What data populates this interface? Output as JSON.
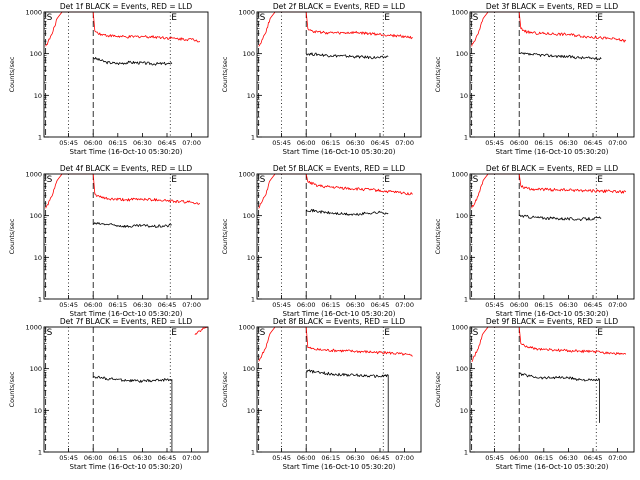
{
  "chart_data": [
    {
      "type": "line",
      "title": "Det 1f BLACK = Events, RED = LLD",
      "xlabel": "Start Time (16-Oct-10 05:30:20)",
      "ylabel": "Counts/sec",
      "yscale": "log",
      "ylim": [
        1,
        1000
      ],
      "xlim": [
        "05:30",
        "07:10"
      ],
      "y_ticks": [
        "1",
        "10",
        "100",
        "1000"
      ],
      "x_ticks": [
        "05:45",
        "06:00",
        "06:15",
        "06:30",
        "06:45",
        "07:00"
      ],
      "vlines": [
        {
          "time": "05:31",
          "style": "dashed"
        },
        {
          "time": "05:45",
          "style": "dotted"
        },
        {
          "time": "06:00",
          "style": "dashed"
        },
        {
          "time": "06:47",
          "style": "dotted"
        }
      ],
      "markers": [
        {
          "label": "S",
          "time": "05:31"
        },
        {
          "label": "E",
          "time": "06:47"
        }
      ],
      "series": [
        {
          "color": "#000000",
          "x": [
            "06:00",
            "06:08",
            "06:15",
            "06:22",
            "06:30",
            "06:37",
            "06:45",
            "06:48"
          ],
          "y": [
            80,
            62,
            58,
            62,
            60,
            57,
            58,
            57
          ]
        },
        {
          "color": "#ff0000",
          "x": [
            "05:31",
            "05:35",
            "05:38",
            "05:41",
            "05:43",
            "06:00",
            "06:01",
            "06:05",
            "06:10",
            "06:20",
            "06:30",
            "06:40",
            "06:50",
            "07:00",
            "07:05"
          ],
          "y": [
            150,
            300,
            700,
            1000,
            1000,
            1000,
            350,
            290,
            270,
            250,
            260,
            250,
            230,
            220,
            200
          ]
        }
      ]
    },
    {
      "type": "line",
      "title": "Det 2f BLACK = Events, RED = LLD",
      "xlabel": "Start Time (16-Oct-10 05:30:20)",
      "ylabel": "Counts/sec",
      "yscale": "log",
      "ylim": [
        1,
        1000
      ],
      "xlim": [
        "05:30",
        "07:10"
      ],
      "y_ticks": [
        "1",
        "10",
        "100",
        "1000"
      ],
      "x_ticks": [
        "05:45",
        "06:00",
        "06:15",
        "06:30",
        "06:45",
        "07:00"
      ],
      "vlines": [
        {
          "time": "05:31",
          "style": "dashed"
        },
        {
          "time": "05:45",
          "style": "dotted"
        },
        {
          "time": "06:00",
          "style": "dashed"
        },
        {
          "time": "06:47",
          "style": "dotted"
        }
      ],
      "markers": [
        {
          "label": "S",
          "time": "05:31"
        },
        {
          "label": "E",
          "time": "06:47"
        }
      ],
      "series": [
        {
          "color": "#000000",
          "x": [
            "06:00",
            "06:08",
            "06:15",
            "06:22",
            "06:30",
            "06:37",
            "06:45",
            "06:50"
          ],
          "y": [
            100,
            95,
            90,
            88,
            85,
            82,
            80,
            85
          ]
        },
        {
          "color": "#ff0000",
          "x": [
            "05:31",
            "05:35",
            "05:38",
            "05:41",
            "05:43",
            "06:00",
            "06:01",
            "06:05",
            "06:10",
            "06:20",
            "06:30",
            "06:40",
            "06:50",
            "07:00",
            "07:05"
          ],
          "y": [
            150,
            300,
            700,
            1000,
            1000,
            1000,
            400,
            340,
            320,
            310,
            320,
            300,
            280,
            260,
            240
          ]
        }
      ]
    },
    {
      "type": "line",
      "title": "Det 3f BLACK = Events, RED = LLD",
      "xlabel": "Start Time (16-Oct-10 05:30:20)",
      "ylabel": "Counts/sec",
      "yscale": "log",
      "ylim": [
        1,
        1000
      ],
      "xlim": [
        "05:30",
        "07:10"
      ],
      "y_ticks": [
        "1",
        "10",
        "100",
        "1000"
      ],
      "x_ticks": [
        "05:45",
        "06:00",
        "06:15",
        "06:30",
        "06:45",
        "07:00"
      ],
      "vlines": [
        {
          "time": "05:31",
          "style": "dashed"
        },
        {
          "time": "05:45",
          "style": "dotted"
        },
        {
          "time": "06:00",
          "style": "dashed"
        },
        {
          "time": "06:47",
          "style": "dotted"
        }
      ],
      "markers": [
        {
          "label": "S",
          "time": "05:31"
        },
        {
          "label": "E",
          "time": "06:47"
        }
      ],
      "series": [
        {
          "color": "#000000",
          "x": [
            "06:00",
            "06:08",
            "06:15",
            "06:22",
            "06:30",
            "06:37",
            "06:45",
            "06:50"
          ],
          "y": [
            100,
            95,
            92,
            88,
            85,
            80,
            78,
            75
          ]
        },
        {
          "color": "#ff0000",
          "x": [
            "05:31",
            "05:35",
            "05:38",
            "05:41",
            "05:43",
            "06:00",
            "06:01",
            "06:05",
            "06:10",
            "06:20",
            "06:30",
            "06:40",
            "06:50",
            "07:00",
            "07:05"
          ],
          "y": [
            150,
            300,
            700,
            1000,
            1000,
            1000,
            400,
            330,
            310,
            300,
            290,
            260,
            240,
            220,
            200
          ]
        }
      ]
    },
    {
      "type": "line",
      "title": "Det 4f BLACK = Events, RED = LLD",
      "xlabel": "Start Time (16-Oct-10 05:30:20)",
      "ylabel": "Counts/sec",
      "yscale": "log",
      "ylim": [
        1,
        1000
      ],
      "xlim": [
        "05:30",
        "07:10"
      ],
      "y_ticks": [
        "1",
        "10",
        "100",
        "1000"
      ],
      "x_ticks": [
        "05:45",
        "06:00",
        "06:15",
        "06:30",
        "06:45",
        "07:00"
      ],
      "vlines": [
        {
          "time": "05:31",
          "style": "dashed"
        },
        {
          "time": "05:45",
          "style": "dotted"
        },
        {
          "time": "06:00",
          "style": "dashed"
        },
        {
          "time": "06:47",
          "style": "dotted"
        }
      ],
      "markers": [
        {
          "label": "S",
          "time": "05:31"
        },
        {
          "label": "E",
          "time": "06:47"
        }
      ],
      "series": [
        {
          "color": "#000000",
          "x": [
            "06:00",
            "06:08",
            "06:15",
            "06:22",
            "06:30",
            "06:37",
            "06:45",
            "06:48"
          ],
          "y": [
            65,
            62,
            58,
            55,
            58,
            55,
            57,
            60
          ]
        },
        {
          "color": "#ff0000",
          "x": [
            "05:31",
            "05:35",
            "05:38",
            "05:41",
            "05:43",
            "06:00",
            "06:01",
            "06:05",
            "06:10",
            "06:20",
            "06:30",
            "06:40",
            "06:50",
            "07:00",
            "07:05"
          ],
          "y": [
            150,
            300,
            700,
            1000,
            1000,
            1000,
            330,
            270,
            250,
            240,
            250,
            240,
            220,
            210,
            200
          ]
        }
      ]
    },
    {
      "type": "line",
      "title": "Det 5f BLACK = Events, RED = LLD",
      "xlabel": "Start Time (16-Oct-10 05:30:20)",
      "ylabel": "Counts/sec",
      "yscale": "log",
      "ylim": [
        1,
        1000
      ],
      "xlim": [
        "05:30",
        "07:10"
      ],
      "y_ticks": [
        "1",
        "10",
        "100",
        "1000"
      ],
      "x_ticks": [
        "05:45",
        "06:00",
        "06:15",
        "06:30",
        "06:45",
        "07:00"
      ],
      "vlines": [
        {
          "time": "05:31",
          "style": "dashed"
        },
        {
          "time": "05:45",
          "style": "dotted"
        },
        {
          "time": "06:00",
          "style": "dashed"
        },
        {
          "time": "06:47",
          "style": "dotted"
        }
      ],
      "markers": [
        {
          "label": "S",
          "time": "05:31"
        },
        {
          "label": "E",
          "time": "06:47"
        }
      ],
      "series": [
        {
          "color": "#000000",
          "x": [
            "06:00",
            "06:08",
            "06:15",
            "06:22",
            "06:30",
            "06:37",
            "06:45",
            "06:50"
          ],
          "y": [
            140,
            125,
            115,
            110,
            105,
            115,
            120,
            115
          ]
        },
        {
          "color": "#ff0000",
          "x": [
            "05:31",
            "05:35",
            "05:38",
            "05:41",
            "05:43",
            "06:00",
            "06:01",
            "06:05",
            "06:10",
            "06:20",
            "06:30",
            "06:40",
            "06:50",
            "07:00",
            "07:05"
          ],
          "y": [
            150,
            300,
            700,
            1000,
            1000,
            1000,
            650,
            560,
            500,
            470,
            440,
            420,
            380,
            350,
            330
          ]
        }
      ]
    },
    {
      "type": "line",
      "title": "Det 6f BLACK = Events, RED = LLD",
      "xlabel": "Start Time (16-Oct-10 05:30:20)",
      "ylabel": "Counts/sec",
      "yscale": "log",
      "ylim": [
        1,
        1000
      ],
      "xlim": [
        "05:30",
        "07:10"
      ],
      "y_ticks": [
        "1",
        "10",
        "100",
        "1000"
      ],
      "x_ticks": [
        "05:45",
        "06:00",
        "06:15",
        "06:30",
        "06:45",
        "07:00"
      ],
      "vlines": [
        {
          "time": "05:31",
          "style": "dashed"
        },
        {
          "time": "05:45",
          "style": "dotted"
        },
        {
          "time": "06:00",
          "style": "dashed"
        },
        {
          "time": "06:47",
          "style": "dotted"
        }
      ],
      "markers": [
        {
          "label": "S",
          "time": "05:31"
        },
        {
          "label": "E",
          "time": "06:47"
        }
      ],
      "series": [
        {
          "color": "#000000",
          "x": [
            "06:00",
            "06:08",
            "06:15",
            "06:22",
            "06:30",
            "06:37",
            "06:45",
            "06:50"
          ],
          "y": [
            100,
            92,
            88,
            86,
            84,
            82,
            85,
            88
          ]
        },
        {
          "color": "#ff0000",
          "x": [
            "05:31",
            "05:35",
            "05:38",
            "05:41",
            "05:43",
            "06:00",
            "06:01",
            "06:05",
            "06:10",
            "06:20",
            "06:30",
            "06:40",
            "06:50",
            "07:00",
            "07:05"
          ],
          "y": [
            150,
            300,
            700,
            1000,
            1000,
            1000,
            520,
            450,
            430,
            420,
            410,
            400,
            390,
            380,
            370
          ]
        }
      ]
    },
    {
      "type": "line",
      "title": "Det 7f BLACK = Events, RED = LLD",
      "xlabel": "Start Time (16-Oct-10 05:30:20)",
      "ylabel": "Counts/sec",
      "yscale": "log",
      "ylim": [
        1,
        1000
      ],
      "xlim": [
        "05:30",
        "07:10"
      ],
      "y_ticks": [
        "1",
        "10",
        "100",
        "1000"
      ],
      "x_ticks": [
        "05:45",
        "06:00",
        "06:15",
        "06:30",
        "06:45",
        "07:00"
      ],
      "vlines": [
        {
          "time": "05:31",
          "style": "dashed"
        },
        {
          "time": "05:45",
          "style": "dotted"
        },
        {
          "time": "06:00",
          "style": "dashed"
        },
        {
          "time": "06:47",
          "style": "dotted"
        }
      ],
      "markers": [
        {
          "label": "S",
          "time": "05:31"
        },
        {
          "label": "E",
          "time": "06:47"
        }
      ],
      "series": [
        {
          "color": "#000000",
          "x": [
            "06:00",
            "06:08",
            "06:15",
            "06:22",
            "06:30",
            "06:37",
            "06:45",
            "06:48",
            "06:48"
          ],
          "y": [
            65,
            58,
            55,
            52,
            50,
            52,
            55,
            55,
            1
          ]
        },
        {
          "color": "#ff0000",
          "x": [
            "07:02",
            "07:05",
            "07:08",
            "07:10"
          ],
          "y": [
            650,
            800,
            950,
            1000
          ]
        }
      ]
    },
    {
      "type": "line",
      "title": "Det 8f BLACK = Events, RED = LLD",
      "xlabel": "Start Time (16-Oct-10 05:30:20)",
      "ylabel": "Counts/sec",
      "yscale": "log",
      "ylim": [
        1,
        1000
      ],
      "xlim": [
        "05:30",
        "07:10"
      ],
      "y_ticks": [
        "1",
        "10",
        "100",
        "1000"
      ],
      "x_ticks": [
        "05:45",
        "06:00",
        "06:15",
        "06:30",
        "06:45",
        "07:00"
      ],
      "vlines": [
        {
          "time": "05:31",
          "style": "dashed"
        },
        {
          "time": "05:45",
          "style": "dotted"
        },
        {
          "time": "06:00",
          "style": "dashed"
        },
        {
          "time": "06:47",
          "style": "dotted"
        }
      ],
      "markers": [
        {
          "label": "S",
          "time": "05:31"
        },
        {
          "label": "E",
          "time": "06:47"
        }
      ],
      "series": [
        {
          "color": "#000000",
          "x": [
            "06:00",
            "06:08",
            "06:15",
            "06:22",
            "06:30",
            "06:37",
            "06:45",
            "06:50",
            "06:50"
          ],
          "y": [
            90,
            80,
            75,
            72,
            70,
            68,
            65,
            70,
            1
          ]
        },
        {
          "color": "#ff0000",
          "x": [
            "05:31",
            "05:35",
            "05:38",
            "05:41",
            "05:43",
            "06:00",
            "06:01",
            "06:05",
            "06:10",
            "06:20",
            "06:30",
            "06:40",
            "06:50",
            "07:00",
            "07:05"
          ],
          "y": [
            150,
            300,
            700,
            1000,
            1000,
            1000,
            320,
            290,
            280,
            270,
            260,
            250,
            240,
            220,
            200
          ]
        }
      ]
    },
    {
      "type": "line",
      "title": "Det 9f BLACK = Events, RED = LLD",
      "xlabel": "Start Time (16-Oct-10 05:30:20)",
      "ylabel": "Counts/sec",
      "yscale": "log",
      "ylim": [
        1,
        1000
      ],
      "xlim": [
        "05:30",
        "07:10"
      ],
      "y_ticks": [
        "1",
        "10",
        "100",
        "1000"
      ],
      "x_ticks": [
        "05:45",
        "06:00",
        "06:15",
        "06:30",
        "06:45",
        "07:00"
      ],
      "vlines": [
        {
          "time": "05:31",
          "style": "dashed"
        },
        {
          "time": "05:45",
          "style": "dotted"
        },
        {
          "time": "06:00",
          "style": "dashed"
        },
        {
          "time": "06:47",
          "style": "dotted"
        }
      ],
      "markers": [
        {
          "label": "S",
          "time": "05:31"
        },
        {
          "label": "E",
          "time": "06:47"
        }
      ],
      "series": [
        {
          "color": "#000000",
          "x": [
            "06:00",
            "06:08",
            "06:15",
            "06:22",
            "06:30",
            "06:37",
            "06:45",
            "06:49",
            "06:49"
          ],
          "y": [
            75,
            65,
            60,
            62,
            60,
            55,
            52,
            55,
            5
          ]
        },
        {
          "color": "#ff0000",
          "x": [
            "05:31",
            "05:35",
            "05:38",
            "05:41",
            "05:43",
            "06:00",
            "06:01",
            "06:05",
            "06:10",
            "06:20",
            "06:30",
            "06:40",
            "06:50",
            "07:00",
            "07:05"
          ],
          "y": [
            150,
            300,
            700,
            1000,
            1000,
            1000,
            400,
            330,
            300,
            280,
            270,
            260,
            250,
            230,
            220
          ]
        }
      ]
    }
  ]
}
